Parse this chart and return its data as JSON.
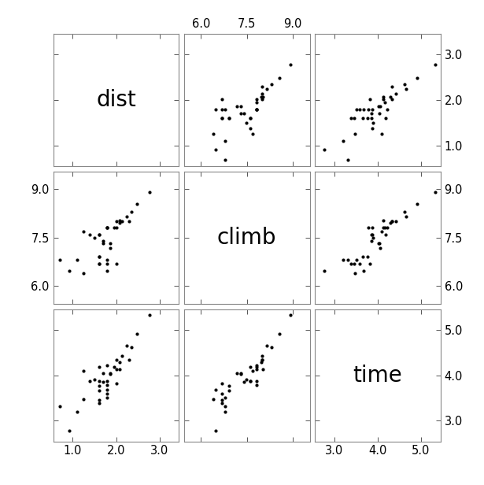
{
  "dist": [
    2.5,
    6.0,
    6.0,
    7.5,
    8.0,
    8.0,
    16.0,
    6.0,
    5.0,
    6.0,
    5.0,
    5.0,
    4.5,
    5.5,
    3.0,
    3.5,
    3.5,
    6.5,
    2.0,
    4.0,
    6.0,
    5.0,
    6.5,
    5.0,
    10.0,
    7.0,
    8.5,
    10.5,
    12.0,
    6.0,
    7.5,
    7.5,
    5.5,
    5.0,
    9.5
  ],
  "climb": [
    650,
    2500,
    900,
    800,
    3070,
    2866,
    7500,
    800,
    800,
    650,
    2000,
    800,
    1800,
    1650,
    900,
    2200,
    600,
    1300,
    900,
    2000,
    2500,
    1000,
    1500,
    1000,
    3000,
    2500,
    3000,
    4000,
    5200,
    2500,
    2500,
    3000,
    1500,
    2000,
    3500
  ],
  "time": [
    16.083,
    48.35,
    33.65,
    45.6,
    62.267,
    73.217,
    204.617,
    36.367,
    29.75,
    39.75,
    47.633,
    31.917,
    49.417,
    47.25,
    24.567,
    60.083,
    32.483,
    57.417,
    27.483,
    47.933,
    68.083,
    38.983,
    56.083,
    43.217,
    76.65,
    65.0,
    83.25,
    101.0,
    135.0,
    44.133,
    62.483,
    76.65,
    56.933,
    65.35,
    105.0
  ],
  "variable_names": [
    "dist",
    "climb",
    "time"
  ],
  "bg_color": "#ffffff",
  "point_color": "#000000",
  "point_size": 9,
  "label_fontsize": 20,
  "tick_fontsize": 10.5,
  "xlims": {
    "dist": [
      0.55,
      3.45
    ],
    "climb": [
      5.45,
      9.55
    ],
    "time": [
      2.55,
      5.45
    ]
  },
  "ylims": {
    "dist": [
      0.55,
      3.45
    ],
    "climb": [
      5.45,
      9.55
    ],
    "time": [
      2.55,
      5.45
    ]
  },
  "xticks": {
    "dist": [
      1.0,
      2.0,
      3.0
    ],
    "climb": [
      6.0,
      7.5,
      9.0
    ],
    "time": [
      3.0,
      4.0,
      5.0
    ]
  },
  "yticks": {
    "dist": [
      1.0,
      2.0,
      3.0
    ],
    "climb": [
      6.0,
      7.5,
      9.0
    ],
    "time": [
      3.0,
      4.0,
      5.0
    ]
  },
  "xticklabels": {
    "dist": [
      "1.0",
      "2.0",
      "3.0"
    ],
    "climb": [
      "6.0",
      "7.5",
      "9.0"
    ],
    "time": [
      "3.0",
      "4.0",
      "5.0"
    ]
  },
  "yticklabels": {
    "dist": [
      "1.0",
      "2.0",
      "3.0"
    ],
    "climb": [
      "6.0",
      "7.5",
      "9.0"
    ],
    "time": [
      "3.0",
      "4.0",
      "5.0"
    ]
  }
}
